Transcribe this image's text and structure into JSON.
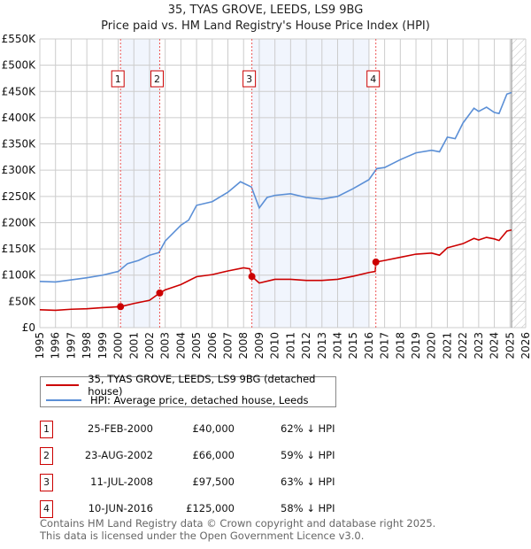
{
  "chart_data": {
    "type": "line",
    "title": "35, TYAS GROVE, LEEDS, LS9 9BG",
    "subtitle": "Price paid vs. HM Land Registry's House Price Index (HPI)",
    "xlim": [
      1995,
      2026
    ],
    "ylim": [
      0,
      550000
    ],
    "grid": true,
    "x_ticks": [
      "1995",
      "1996",
      "1997",
      "1998",
      "1999",
      "2000",
      "2001",
      "2002",
      "2003",
      "2004",
      "2005",
      "2006",
      "2007",
      "2008",
      "2009",
      "2010",
      "2011",
      "2012",
      "2013",
      "2014",
      "2015",
      "2016",
      "2017",
      "2018",
      "2019",
      "2020",
      "2021",
      "2022",
      "2023",
      "2024",
      "2025",
      "2026"
    ],
    "y_ticks": [
      {
        "value": 0,
        "label": "£0"
      },
      {
        "value": 50000,
        "label": "£50K"
      },
      {
        "value": 100000,
        "label": "£100K"
      },
      {
        "value": 150000,
        "label": "£150K"
      },
      {
        "value": 200000,
        "label": "£200K"
      },
      {
        "value": 250000,
        "label": "£250K"
      },
      {
        "value": 300000,
        "label": "£300K"
      },
      {
        "value": 350000,
        "label": "£350K"
      },
      {
        "value": 400000,
        "label": "£400K"
      },
      {
        "value": 450000,
        "label": "£450K"
      },
      {
        "value": 500000,
        "label": "£500K"
      },
      {
        "value": 550000,
        "label": "£550K"
      }
    ],
    "shaded_ranges": [
      [
        2000.15,
        2002.65
      ],
      [
        2008.53,
        2016.0
      ]
    ],
    "forecast_from": 2025.1,
    "series": [
      {
        "name": "35, TYAS GROVE, LEEDS, LS9 9BG (detached house)",
        "color": "#cc0000",
        "x": [
          1995,
          1996,
          1997,
          1998,
          1999,
          2000.15,
          2001,
          2002,
          2002.65,
          2003,
          2004,
          2005,
          2006,
          2007,
          2008,
          2008.4,
          2008.53,
          2009,
          2010,
          2011,
          2012,
          2013,
          2014,
          2015,
          2016,
          2016.4,
          2016.44,
          2017,
          2018,
          2019,
          2020,
          2020.5,
          2021,
          2022,
          2022.7,
          2023,
          2023.5,
          2024,
          2024.3,
          2024.8,
          2025.1
        ],
        "y": [
          34000,
          33000,
          35000,
          36000,
          38000,
          40000,
          46000,
          52000,
          66000,
          72000,
          82000,
          97000,
          101000,
          108000,
          114000,
          112000,
          97500,
          85000,
          92000,
          92000,
          90000,
          90000,
          92000,
          98000,
          105000,
          107000,
          125000,
          128000,
          134000,
          140000,
          142000,
          138000,
          152000,
          160000,
          170000,
          167000,
          172000,
          169000,
          166000,
          184000,
          186000
        ]
      },
      {
        "name": "HPI: Average price, detached house, Leeds",
        "color": "#5b8fd6",
        "x": [
          1995,
          1996,
          1997,
          1998,
          1999,
          2000,
          2000.6,
          2001.3,
          2002,
          2002.6,
          2003,
          2004,
          2004.5,
          2005,
          2006,
          2007,
          2007.8,
          2008.5,
          2009,
          2009.5,
          2010,
          2011,
          2012,
          2013,
          2014,
          2015,
          2016,
          2016.5,
          2017,
          2018,
          2019,
          2020,
          2020.5,
          2021,
          2021.5,
          2022,
          2022.7,
          2023,
          2023.5,
          2024,
          2024.3,
          2024.8,
          2025.1
        ],
        "y": [
          88000,
          87000,
          91000,
          95000,
          100000,
          107000,
          122000,
          128000,
          138000,
          143000,
          165000,
          195000,
          205000,
          233000,
          240000,
          258000,
          278000,
          268000,
          228000,
          248000,
          252000,
          255000,
          248000,
          245000,
          250000,
          265000,
          282000,
          303000,
          305000,
          320000,
          333000,
          338000,
          335000,
          363000,
          360000,
          390000,
          418000,
          412000,
          420000,
          410000,
          408000,
          445000,
          448000
        ]
      }
    ],
    "transactions": [
      {
        "id": "1",
        "x": 2000.15,
        "price": 40000,
        "date": "25-FEB-2000",
        "price_label": "£40,000",
        "hpi": "62% ↓ HPI"
      },
      {
        "id": "2",
        "x": 2002.65,
        "price": 66000,
        "date": "23-AUG-2002",
        "price_label": "£66,000",
        "hpi": "59% ↓ HPI"
      },
      {
        "id": "3",
        "x": 2008.53,
        "price": 97500,
        "date": "11-JUL-2008",
        "price_label": "£97,500",
        "hpi": "63% ↓ HPI"
      },
      {
        "id": "4",
        "x": 2016.44,
        "price": 125000,
        "date": "10-JUN-2016",
        "price_label": "£125,000",
        "hpi": "58% ↓ HPI"
      }
    ]
  },
  "footer": {
    "line1": "Contains HM Land Registry data © Crown copyright and database right 2025.",
    "line2": "This data is licensed under the Open Government Licence v3.0."
  }
}
